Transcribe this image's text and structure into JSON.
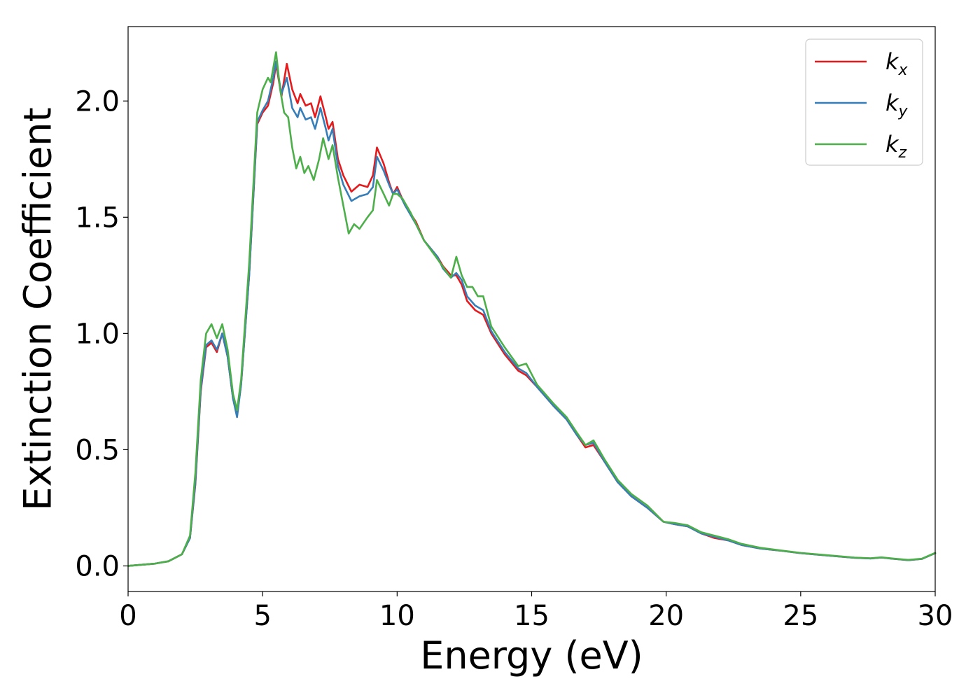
{
  "chart_data": {
    "type": "line",
    "title": "",
    "xlabel": "Energy (eV)",
    "ylabel": "Extinction Coefficient",
    "xlim": [
      0,
      30
    ],
    "ylim": [
      -0.11,
      2.32
    ],
    "xticks": [
      0,
      5,
      10,
      15,
      20,
      25,
      30
    ],
    "xtick_labels": [
      "0",
      "5",
      "10",
      "15",
      "20",
      "25",
      "30"
    ],
    "yticks": [
      0.0,
      0.5,
      1.0,
      1.5,
      2.0
    ],
    "ytick_labels": [
      "0.0",
      "0.5",
      "1.0",
      "1.5",
      "2.0"
    ],
    "grid": false,
    "legend_position": "top-right",
    "series": [
      {
        "name": "k",
        "subscript": "x",
        "color": "#e41a1c",
        "points": [
          [
            0,
            0.0
          ],
          [
            1,
            0.01
          ],
          [
            1.5,
            0.02
          ],
          [
            2,
            0.05
          ],
          [
            2.3,
            0.12
          ],
          [
            2.5,
            0.35
          ],
          [
            2.7,
            0.75
          ],
          [
            2.9,
            0.94
          ],
          [
            3.1,
            0.96
          ],
          [
            3.3,
            0.92
          ],
          [
            3.5,
            1.0
          ],
          [
            3.7,
            0.9
          ],
          [
            3.9,
            0.72
          ],
          [
            4.05,
            0.65
          ],
          [
            4.2,
            0.78
          ],
          [
            4.5,
            1.25
          ],
          [
            4.8,
            1.9
          ],
          [
            5.0,
            1.95
          ],
          [
            5.2,
            1.98
          ],
          [
            5.4,
            2.08
          ],
          [
            5.5,
            2.16
          ],
          [
            5.7,
            2.02
          ],
          [
            5.9,
            2.16
          ],
          [
            6.1,
            2.05
          ],
          [
            6.3,
            1.99
          ],
          [
            6.4,
            2.03
          ],
          [
            6.6,
            1.98
          ],
          [
            6.8,
            1.99
          ],
          [
            6.95,
            1.93
          ],
          [
            7.15,
            2.02
          ],
          [
            7.35,
            1.93
          ],
          [
            7.45,
            1.88
          ],
          [
            7.6,
            1.91
          ],
          [
            7.8,
            1.75
          ],
          [
            8.0,
            1.68
          ],
          [
            8.3,
            1.61
          ],
          [
            8.6,
            1.64
          ],
          [
            8.9,
            1.63
          ],
          [
            9.1,
            1.68
          ],
          [
            9.25,
            1.8
          ],
          [
            9.5,
            1.73
          ],
          [
            9.7,
            1.65
          ],
          [
            9.85,
            1.6
          ],
          [
            10.0,
            1.63
          ],
          [
            10.3,
            1.55
          ],
          [
            10.7,
            1.48
          ],
          [
            11.0,
            1.4
          ],
          [
            11.5,
            1.33
          ],
          [
            11.7,
            1.29
          ],
          [
            12.0,
            1.25
          ],
          [
            12.2,
            1.25
          ],
          [
            12.4,
            1.21
          ],
          [
            12.6,
            1.14
          ],
          [
            12.9,
            1.1
          ],
          [
            13.2,
            1.08
          ],
          [
            13.5,
            1.0
          ],
          [
            14.0,
            0.91
          ],
          [
            14.5,
            0.84
          ],
          [
            14.8,
            0.82
          ],
          [
            15.2,
            0.77
          ],
          [
            15.8,
            0.69
          ],
          [
            16.3,
            0.63
          ],
          [
            16.7,
            0.56
          ],
          [
            17.0,
            0.51
          ],
          [
            17.3,
            0.52
          ],
          [
            17.7,
            0.45
          ],
          [
            18.2,
            0.36
          ],
          [
            18.7,
            0.3
          ],
          [
            19.3,
            0.25
          ],
          [
            19.9,
            0.19
          ],
          [
            20.3,
            0.18
          ],
          [
            20.8,
            0.17
          ],
          [
            21.3,
            0.14
          ],
          [
            21.8,
            0.12
          ],
          [
            22.3,
            0.11
          ],
          [
            22.8,
            0.09
          ],
          [
            23.5,
            0.075
          ],
          [
            24.3,
            0.065
          ],
          [
            25.0,
            0.055
          ],
          [
            26.0,
            0.045
          ],
          [
            27.0,
            0.035
          ],
          [
            27.6,
            0.032
          ],
          [
            28.0,
            0.036
          ],
          [
            28.5,
            0.03
          ],
          [
            29.0,
            0.025
          ],
          [
            29.5,
            0.03
          ],
          [
            30.0,
            0.055
          ]
        ]
      },
      {
        "name": "k",
        "subscript": "y",
        "color": "#377eb8",
        "points": [
          [
            0,
            0.0
          ],
          [
            1,
            0.01
          ],
          [
            1.5,
            0.02
          ],
          [
            2,
            0.05
          ],
          [
            2.3,
            0.12
          ],
          [
            2.5,
            0.36
          ],
          [
            2.7,
            0.76
          ],
          [
            2.9,
            0.95
          ],
          [
            3.1,
            0.97
          ],
          [
            3.3,
            0.93
          ],
          [
            3.5,
            1.0
          ],
          [
            3.7,
            0.9
          ],
          [
            3.9,
            0.72
          ],
          [
            4.05,
            0.64
          ],
          [
            4.2,
            0.78
          ],
          [
            4.5,
            1.25
          ],
          [
            4.8,
            1.91
          ],
          [
            5.0,
            1.96
          ],
          [
            5.2,
            2.0
          ],
          [
            5.4,
            2.1
          ],
          [
            5.5,
            2.17
          ],
          [
            5.7,
            2.03
          ],
          [
            5.9,
            2.1
          ],
          [
            6.1,
            1.97
          ],
          [
            6.3,
            1.93
          ],
          [
            6.4,
            1.97
          ],
          [
            6.6,
            1.92
          ],
          [
            6.8,
            1.93
          ],
          [
            6.95,
            1.88
          ],
          [
            7.15,
            1.97
          ],
          [
            7.35,
            1.88
          ],
          [
            7.45,
            1.83
          ],
          [
            7.6,
            1.88
          ],
          [
            7.8,
            1.72
          ],
          [
            8.0,
            1.64
          ],
          [
            8.3,
            1.57
          ],
          [
            8.6,
            1.59
          ],
          [
            8.9,
            1.6
          ],
          [
            9.1,
            1.63
          ],
          [
            9.25,
            1.76
          ],
          [
            9.5,
            1.7
          ],
          [
            9.7,
            1.64
          ],
          [
            9.85,
            1.6
          ],
          [
            10.0,
            1.62
          ],
          [
            10.3,
            1.55
          ],
          [
            10.7,
            1.47
          ],
          [
            11.0,
            1.4
          ],
          [
            11.5,
            1.33
          ],
          [
            11.7,
            1.28
          ],
          [
            12.0,
            1.24
          ],
          [
            12.2,
            1.26
          ],
          [
            12.4,
            1.23
          ],
          [
            12.6,
            1.16
          ],
          [
            12.9,
            1.12
          ],
          [
            13.2,
            1.1
          ],
          [
            13.5,
            1.01
          ],
          [
            14.0,
            0.92
          ],
          [
            14.5,
            0.85
          ],
          [
            14.8,
            0.83
          ],
          [
            15.2,
            0.77
          ],
          [
            15.8,
            0.69
          ],
          [
            16.3,
            0.63
          ],
          [
            16.7,
            0.56
          ],
          [
            17.0,
            0.52
          ],
          [
            17.3,
            0.53
          ],
          [
            17.7,
            0.45
          ],
          [
            18.2,
            0.36
          ],
          [
            18.7,
            0.3
          ],
          [
            19.3,
            0.25
          ],
          [
            19.9,
            0.19
          ],
          [
            20.3,
            0.18
          ],
          [
            20.8,
            0.17
          ],
          [
            21.3,
            0.14
          ],
          [
            21.8,
            0.125
          ],
          [
            22.3,
            0.11
          ],
          [
            22.8,
            0.09
          ],
          [
            23.5,
            0.075
          ],
          [
            24.3,
            0.065
          ],
          [
            25.0,
            0.055
          ],
          [
            26.0,
            0.045
          ],
          [
            27.0,
            0.035
          ],
          [
            27.6,
            0.032
          ],
          [
            28.0,
            0.036
          ],
          [
            28.5,
            0.03
          ],
          [
            29.0,
            0.025
          ],
          [
            29.5,
            0.03
          ],
          [
            30.0,
            0.055
          ]
        ]
      },
      {
        "name": "k",
        "subscript": "z",
        "color": "#4daf4a",
        "points": [
          [
            0,
            0.0
          ],
          [
            1,
            0.01
          ],
          [
            1.5,
            0.02
          ],
          [
            2,
            0.05
          ],
          [
            2.3,
            0.13
          ],
          [
            2.5,
            0.4
          ],
          [
            2.7,
            0.8
          ],
          [
            2.9,
            1.0
          ],
          [
            3.1,
            1.04
          ],
          [
            3.3,
            0.98
          ],
          [
            3.5,
            1.04
          ],
          [
            3.7,
            0.93
          ],
          [
            3.9,
            0.74
          ],
          [
            4.05,
            0.67
          ],
          [
            4.2,
            0.8
          ],
          [
            4.5,
            1.3
          ],
          [
            4.8,
            1.95
          ],
          [
            5.0,
            2.05
          ],
          [
            5.2,
            2.1
          ],
          [
            5.3,
            2.08
          ],
          [
            5.5,
            2.21
          ],
          [
            5.65,
            2.05
          ],
          [
            5.8,
            1.95
          ],
          [
            5.95,
            1.93
          ],
          [
            6.1,
            1.8
          ],
          [
            6.25,
            1.71
          ],
          [
            6.4,
            1.76
          ],
          [
            6.55,
            1.69
          ],
          [
            6.7,
            1.72
          ],
          [
            6.9,
            1.66
          ],
          [
            7.1,
            1.75
          ],
          [
            7.25,
            1.84
          ],
          [
            7.45,
            1.75
          ],
          [
            7.6,
            1.81
          ],
          [
            7.8,
            1.67
          ],
          [
            8.0,
            1.55
          ],
          [
            8.2,
            1.43
          ],
          [
            8.4,
            1.47
          ],
          [
            8.6,
            1.45
          ],
          [
            8.9,
            1.5
          ],
          [
            9.1,
            1.53
          ],
          [
            9.25,
            1.66
          ],
          [
            9.5,
            1.6
          ],
          [
            9.7,
            1.55
          ],
          [
            9.85,
            1.6
          ],
          [
            10.0,
            1.6
          ],
          [
            10.2,
            1.58
          ],
          [
            10.5,
            1.52
          ],
          [
            11.0,
            1.4
          ],
          [
            11.5,
            1.32
          ],
          [
            11.8,
            1.27
          ],
          [
            12.0,
            1.24
          ],
          [
            12.2,
            1.33
          ],
          [
            12.4,
            1.25
          ],
          [
            12.6,
            1.2
          ],
          [
            12.8,
            1.2
          ],
          [
            13.0,
            1.16
          ],
          [
            13.2,
            1.16
          ],
          [
            13.5,
            1.03
          ],
          [
            14.0,
            0.94
          ],
          [
            14.5,
            0.86
          ],
          [
            14.8,
            0.87
          ],
          [
            15.2,
            0.78
          ],
          [
            15.8,
            0.7
          ],
          [
            16.3,
            0.64
          ],
          [
            16.7,
            0.57
          ],
          [
            17.0,
            0.52
          ],
          [
            17.3,
            0.54
          ],
          [
            17.7,
            0.46
          ],
          [
            18.2,
            0.37
          ],
          [
            18.7,
            0.31
          ],
          [
            19.3,
            0.26
          ],
          [
            19.9,
            0.19
          ],
          [
            20.3,
            0.185
          ],
          [
            20.8,
            0.175
          ],
          [
            21.3,
            0.145
          ],
          [
            21.8,
            0.13
          ],
          [
            22.3,
            0.115
          ],
          [
            22.8,
            0.095
          ],
          [
            23.5,
            0.078
          ],
          [
            24.3,
            0.066
          ],
          [
            25.0,
            0.056
          ],
          [
            26.0,
            0.046
          ],
          [
            27.0,
            0.036
          ],
          [
            27.6,
            0.033
          ],
          [
            28.0,
            0.037
          ],
          [
            28.5,
            0.031
          ],
          [
            29.0,
            0.026
          ],
          [
            29.5,
            0.031
          ],
          [
            30.0,
            0.056
          ]
        ]
      }
    ]
  }
}
